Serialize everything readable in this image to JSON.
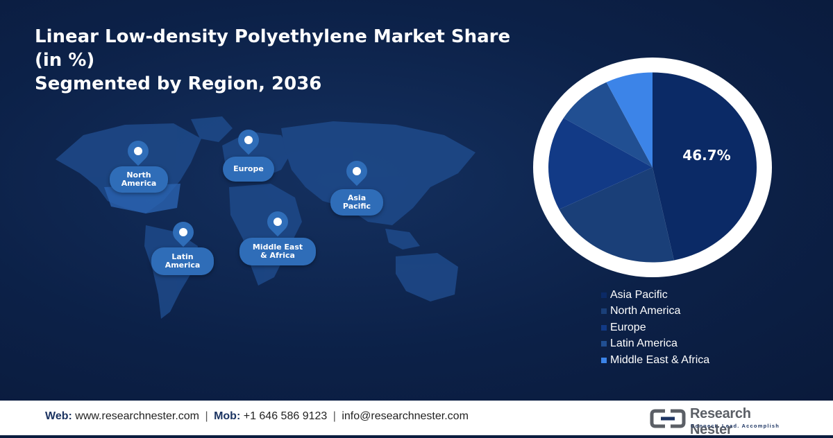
{
  "title": {
    "line1": "Linear Low-density Polyethylene Market Share (in %)",
    "line2": "Segmented by Region, 2036"
  },
  "map_labels": {
    "north_america": "North\nAmerica",
    "europe": "Europe",
    "asia_pacific": "Asia\nPacific",
    "latin_america": "Latin\nAmerica",
    "mea": "Middle East\n& Africa"
  },
  "chart_data": {
    "type": "pie",
    "title": "",
    "slices": [
      {
        "label": "Asia Pacific",
        "value": 46.7,
        "color": "#0b2a66",
        "shown_label": "46.7%"
      },
      {
        "label": "North America",
        "value": 21.0,
        "color": "#1a3f78"
      },
      {
        "label": "Europe",
        "value": 16.0,
        "color": "#123a86"
      },
      {
        "label": "Latin America",
        "value": 9.0,
        "color": "#214f92"
      },
      {
        "label": "Middle East & Africa",
        "value": 7.3,
        "color": "#3c84e8"
      }
    ],
    "legend_position": "bottom-right"
  },
  "footer": {
    "web_label": "Web:",
    "web_value": "www.researchnester.com",
    "mob_label": "Mob:",
    "mob_value": "+1 646 586 9123",
    "email": "info@researchnester.com",
    "brand": "Research Nester",
    "tagline": "Connect. Lead. Accomplish"
  }
}
